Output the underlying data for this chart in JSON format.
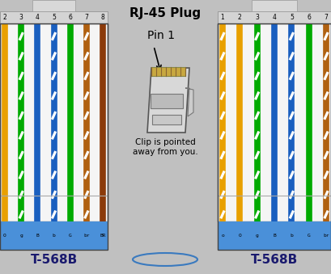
{
  "bg_color": "#c0c0c0",
  "panel_bg": "#f5f5f5",
  "blue_bar": "#4a90d9",
  "title": "RJ-45 Plug",
  "pin1_label": "Pin 1",
  "clip_text": "Clip is pointed\naway from you.",
  "label_568b": "T-568B",
  "left_pin_numbers": [
    "2",
    "3",
    "4",
    "5",
    "6",
    "7",
    "8"
  ],
  "right_pin_numbers": [
    "1",
    "2",
    "3",
    "4",
    "5",
    "6",
    "7"
  ],
  "left_wire_colors": [
    [
      "#e8a000",
      "#e8a000",
      false
    ],
    [
      "#ffffff",
      "#00aa00",
      true
    ],
    [
      "#1a5fbf",
      "#1a5fbf",
      false
    ],
    [
      "#ffffff",
      "#1a5fbf",
      true
    ],
    [
      "#00aa00",
      "#00aa00",
      false
    ],
    [
      "#ffffff",
      "#b06010",
      true
    ],
    [
      "#8B3a0a",
      "#8B3a0a",
      false
    ]
  ],
  "right_wire_colors": [
    [
      "#ffffff",
      "#e8a000",
      true
    ],
    [
      "#e8a000",
      "#e8a000",
      false
    ],
    [
      "#ffffff",
      "#00aa00",
      true
    ],
    [
      "#1a5fbf",
      "#1a5fbf",
      false
    ],
    [
      "#ffffff",
      "#1a5fbf",
      true
    ],
    [
      "#00aa00",
      "#00aa00",
      false
    ],
    [
      "#ffffff",
      "#b06010",
      true
    ]
  ],
  "left_pin_labels": [
    "O",
    "g",
    "B",
    "b",
    "G",
    "br",
    "BR"
  ],
  "right_pin_labels": [
    "o",
    "O",
    "g",
    "B",
    "b",
    "G",
    "br"
  ],
  "wire_lw": 5.5,
  "stripe_lw": 1.8
}
